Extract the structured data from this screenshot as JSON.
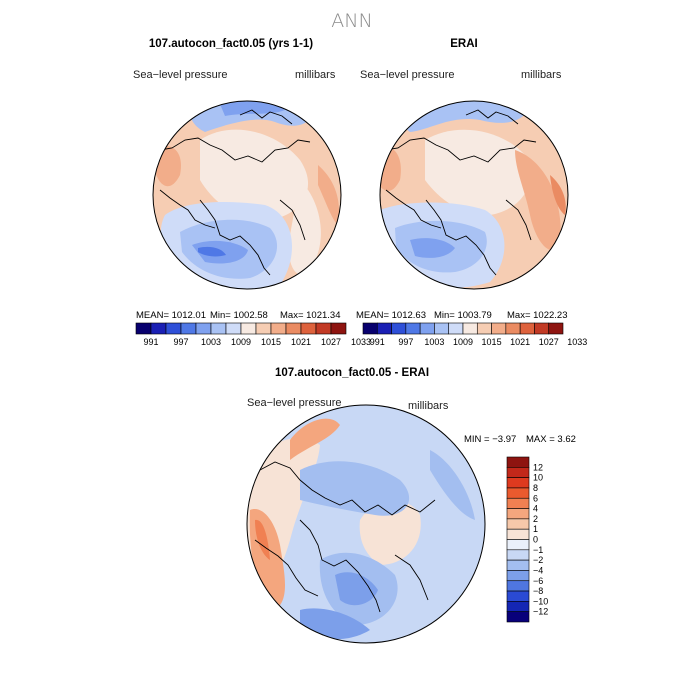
{
  "figure": {
    "title": "ANN",
    "panels": [
      {
        "title": "107.autocon_fact0.05 (yrs 1-1)",
        "variable": "Sea−level pressure",
        "units": "millibars",
        "stats": {
          "mean": "MEAN= 1012.01",
          "min": "Min= 1002.58",
          "max": "Max= 1021.34"
        }
      },
      {
        "title": "ERAI",
        "variable": "Sea−level pressure",
        "units": "millibars",
        "stats": {
          "mean": "MEAN= 1012.63",
          "min": "Min= 1003.79",
          "max": "Max= 1022.23"
        }
      },
      {
        "title": "107.autocon_fact0.05 - ERAI",
        "variable": "Sea−level pressure",
        "units": "millibars",
        "stats": {
          "min": "MIN = −3.97",
          "max": "MAX = 3.62"
        }
      }
    ]
  },
  "chart_data": [
    {
      "type": "heatmap",
      "projection": "north polar stereographic",
      "title": "107.autocon_fact0.05 (yrs 1-1)",
      "variable": "Sea-level pressure",
      "units": "millibars",
      "mean": 1012.01,
      "min": 1002.58,
      "max": 1021.34,
      "colorbar": {
        "orientation": "horizontal",
        "levels": [
          991,
          997,
          1003,
          1009,
          1015,
          1021,
          1027,
          1033
        ],
        "colors": [
          "#08006e",
          "#1a1fb4",
          "#2e4fd8",
          "#4f78e6",
          "#7fa1ef",
          "#a9c2f4",
          "#cfdcf8",
          "#f7eae2",
          "#f6cdb3",
          "#f2ad8a",
          "#ea8b62",
          "#de623d",
          "#c23a25",
          "#8e1410"
        ]
      }
    },
    {
      "type": "heatmap",
      "projection": "north polar stereographic",
      "title": "ERAI",
      "variable": "Sea-level pressure",
      "units": "millibars",
      "mean": 1012.63,
      "min": 1003.79,
      "max": 1022.23,
      "colorbar": {
        "orientation": "horizontal",
        "levels": [
          991,
          997,
          1003,
          1009,
          1015,
          1021,
          1027,
          1033
        ],
        "colors": [
          "#08006e",
          "#1a1fb4",
          "#2e4fd8",
          "#4f78e6",
          "#7fa1ef",
          "#a9c2f4",
          "#cfdcf8",
          "#f7eae2",
          "#f6cdb3",
          "#f2ad8a",
          "#ea8b62",
          "#de623d",
          "#c23a25",
          "#8e1410"
        ]
      }
    },
    {
      "type": "heatmap",
      "projection": "north polar stereographic",
      "title": "107.autocon_fact0.05 - ERAI",
      "variable": "Sea-level pressure",
      "units": "millibars",
      "min": -3.97,
      "max": 3.62,
      "colorbar": {
        "orientation": "vertical",
        "levels": [
          12,
          10,
          8,
          6,
          4,
          2,
          1,
          0,
          -1,
          -2,
          -4,
          -6,
          -8,
          -10,
          -12
        ],
        "colors": [
          "#8e1410",
          "#c2281a",
          "#de3a1f",
          "#ea5a2e",
          "#f08052",
          "#f4a67e",
          "#f6c8aa",
          "#f7e3d6",
          "#eaf0fa",
          "#c8d8f5",
          "#a3bef0",
          "#7c9fea",
          "#4f76e0",
          "#2a4ad4",
          "#1426b4",
          "#08007a"
        ]
      }
    }
  ]
}
